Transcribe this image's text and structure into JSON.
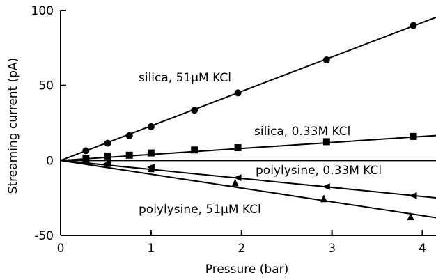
{
  "chart_data": {
    "type": "scatter",
    "title": "",
    "xlabel": "Pressure (bar)",
    "ylabel": "Streaming current (pA)",
    "xlim": [
      0,
      4.15
    ],
    "ylim": [
      -50,
      100
    ],
    "xticks": [
      0,
      1,
      2,
      3,
      4
    ],
    "yticks": [
      -50,
      0,
      50,
      100
    ],
    "xtick_labels": [
      "0",
      "1",
      "2",
      "3",
      "4"
    ],
    "ytick_labels": [
      "-50",
      "0",
      "50",
      "100"
    ],
    "grid": false,
    "legend": "none",
    "series": [
      {
        "name": "silica, 51µM KCl",
        "marker": "circle",
        "color": "#000000",
        "x": [
          0.28,
          0.52,
          0.76,
          1.0,
          1.48,
          1.96,
          2.94,
          3.9
        ],
        "y": [
          6.5,
          11.5,
          16.5,
          22.5,
          33.5,
          45,
          67,
          90
        ],
        "fit_slope": 23.0
      },
      {
        "name": "silica, 0.33M KCl",
        "marker": "square",
        "color": "#000000",
        "x": [
          0.28,
          0.52,
          0.76,
          1.0,
          1.48,
          1.96,
          2.94,
          3.9
        ],
        "y": [
          1.5,
          3,
          3.5,
          5,
          7,
          8.5,
          12.5,
          16
        ],
        "fit_slope": 4.0
      },
      {
        "name": "polylysine, 0.33M KCl",
        "marker": "triangle-left",
        "color": "#000000",
        "x": [
          0.28,
          0.52,
          1.0,
          1.96,
          2.94,
          3.9
        ],
        "y": [
          -1,
          -2,
          -4.5,
          -11.5,
          -17.5,
          -23.5
        ],
        "fit_slope": -6.0
      },
      {
        "name": "polylysine, 51µM KCl",
        "marker": "triangle-up",
        "color": "#000000",
        "x": [
          0.52,
          1.0,
          1.93,
          2.91,
          3.87
        ],
        "y": [
          -2,
          -5.5,
          -15,
          -25.5,
          -37.5
        ],
        "fit_slope": -9.2
      }
    ],
    "labels": {
      "silica_51": "silica, 51µM KCl",
      "silica_033": "silica, 0.33M KCl",
      "polylysine_033": "polylysine, 0.33M KCl",
      "polylysine_51": "polylysine, 51µM KCl"
    }
  }
}
